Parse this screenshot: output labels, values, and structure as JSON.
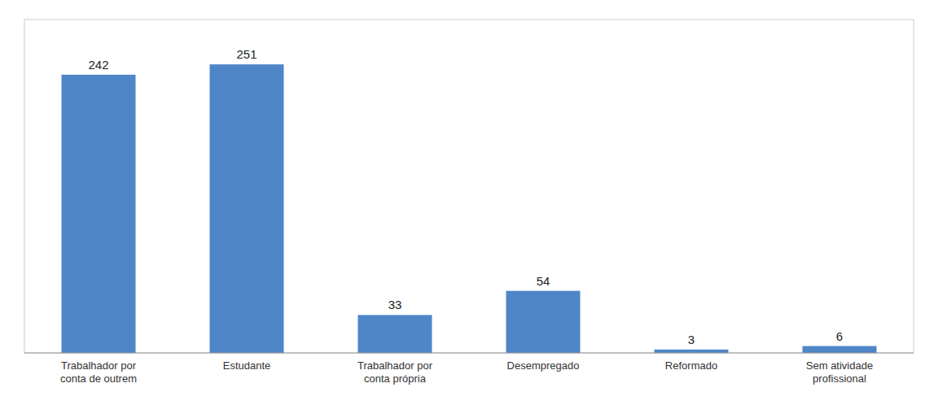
{
  "chart_data": {
    "type": "bar",
    "categories": [
      "Trabalhador por\nconta de outrem",
      "Estudante",
      "Trabalhador por\nconta própria",
      "Desempregado",
      "Reformado",
      "Sem atividade\nprofissional"
    ],
    "values": [
      242,
      251,
      33,
      54,
      3,
      6
    ],
    "color": "#4e86c8",
    "ylim": [
      0,
      290
    ],
    "data_labels": true,
    "tick_labels": "x"
  }
}
